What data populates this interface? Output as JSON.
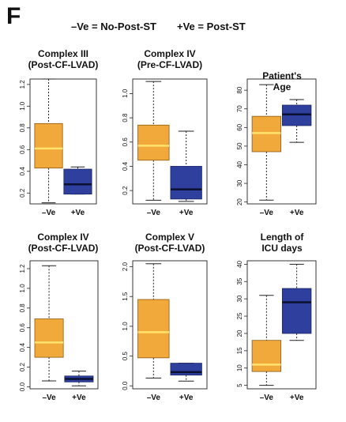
{
  "figure": {
    "panel_label": "F",
    "legend": {
      "neg": "–Ve = No-Post-ST",
      "pos": "+Ve = Post-ST"
    }
  },
  "colors": {
    "neg": "#f2a93b",
    "pos": "#2e3f9e",
    "median_neg": "#ffe36e",
    "median_pos": "#0b1030"
  },
  "chart_data": [
    {
      "type": "box",
      "title": [
        "Complex III",
        "(Post-CF-LVAD)"
      ],
      "categories": [
        "–Ve",
        "+Ve"
      ],
      "ylim": [
        0.1,
        1.25
      ],
      "yticks": [
        0.2,
        0.4,
        0.6,
        0.8,
        1.0,
        1.2
      ],
      "yticklabels": [
        "0.2",
        "0.4",
        "0.6",
        "0.8",
        "1.0",
        "1.2"
      ],
      "boxes": [
        {
          "min": 0.11,
          "q1": 0.43,
          "median": 0.61,
          "q3": 0.84,
          "max": 1.25
        },
        {
          "min": 0.19,
          "q1": 0.19,
          "median": 0.28,
          "q3": 0.42,
          "max": 0.44
        }
      ]
    },
    {
      "type": "box",
      "title": [
        "Complex IV",
        "(Pre-CF-LVAD)"
      ],
      "categories": [
        "–Ve",
        "+Ve"
      ],
      "ylim": [
        0.09,
        1.12
      ],
      "yticks": [
        0.2,
        0.4,
        0.6,
        0.8,
        1.0
      ],
      "yticklabels": [
        "0.2",
        "0.4",
        "0.6",
        "0.8",
        "1.0"
      ],
      "boxes": [
        {
          "min": 0.12,
          "q1": 0.45,
          "median": 0.57,
          "q3": 0.74,
          "max": 1.1
        },
        {
          "min": 0.11,
          "q1": 0.13,
          "median": 0.21,
          "q3": 0.4,
          "max": 0.69
        }
      ]
    },
    {
      "type": "box",
      "title": [
        "Patient's",
        "Age"
      ],
      "categories": [
        "–Ve",
        "+Ve"
      ],
      "ylim": [
        19,
        86
      ],
      "yticks": [
        20,
        30,
        40,
        50,
        60,
        70,
        80
      ],
      "yticklabels": [
        "20",
        "30",
        "40",
        "50",
        "60",
        "70",
        "80"
      ],
      "boxes": [
        {
          "min": 21,
          "q1": 47,
          "median": 57,
          "q3": 66,
          "max": 83
        },
        {
          "min": 52,
          "q1": 61,
          "median": 67,
          "q3": 72,
          "max": 75
        }
      ]
    },
    {
      "type": "box",
      "title": [
        "Complex IV",
        "(Post-CF-LVAD)"
      ],
      "categories": [
        "–Ve",
        "+Ve"
      ],
      "ylim": [
        -0.02,
        1.28
      ],
      "yticks": [
        0.0,
        0.2,
        0.4,
        0.6,
        0.8,
        1.0,
        1.2
      ],
      "yticklabels": [
        "0.0",
        "0.2",
        "0.4",
        "0.6",
        "0.8",
        "1.0",
        "1.2"
      ],
      "boxes": [
        {
          "min": 0.06,
          "q1": 0.3,
          "median": 0.45,
          "q3": 0.69,
          "max": 1.23
        },
        {
          "min": 0.01,
          "q1": 0.05,
          "median": 0.08,
          "q3": 0.11,
          "max": 0.16
        }
      ]
    },
    {
      "type": "box",
      "title": [
        "Complex V",
        "(Post-CF-LVAD)"
      ],
      "categories": [
        "–Ve",
        "+Ve"
      ],
      "ylim": [
        -0.05,
        2.1
      ],
      "yticks": [
        0.0,
        0.5,
        1.0,
        1.5,
        2.0
      ],
      "yticklabels": [
        "0.0",
        "0.5",
        "1.0",
        "1.5",
        "2.0"
      ],
      "boxes": [
        {
          "min": 0.13,
          "q1": 0.47,
          "median": 0.9,
          "q3": 1.45,
          "max": 2.05
        },
        {
          "min": 0.08,
          "q1": 0.18,
          "median": 0.23,
          "q3": 0.38,
          "max": 0.38
        }
      ]
    },
    {
      "type": "box",
      "title": [
        "Length of",
        "ICU days"
      ],
      "categories": [
        "–Ve",
        "+Ve"
      ],
      "ylim": [
        4,
        41
      ],
      "yticks": [
        5,
        10,
        15,
        20,
        25,
        30,
        35,
        40
      ],
      "yticklabels": [
        "5",
        "10",
        "15",
        "20",
        "25",
        "30",
        "35",
        "40"
      ],
      "boxes": [
        {
          "min": 5,
          "q1": 9,
          "median": 11,
          "q3": 18,
          "max": 31
        },
        {
          "min": 18,
          "q1": 20,
          "median": 29,
          "q3": 33,
          "max": 40
        }
      ]
    }
  ]
}
